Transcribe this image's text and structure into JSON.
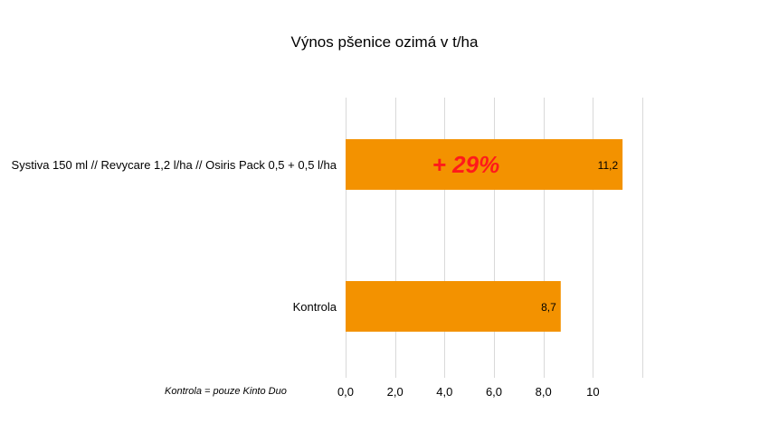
{
  "chart_data": {
    "type": "bar",
    "orientation": "horizontal",
    "title": "Výnos pšenice ozimá v t/ha",
    "categories": [
      "Systiva 150 ml // Revycare 1,2 l/ha // Osiris Pack 0,5 + 0,5 l/ha",
      "Kontrola"
    ],
    "values": [
      11.2,
      8.7
    ],
    "data_labels": [
      "11,2",
      "8,7"
    ],
    "xlim": [
      0,
      12
    ],
    "x_ticks": [
      0,
      2,
      4,
      6,
      8,
      10
    ],
    "x_tick_labels": [
      "0,0",
      "2,0",
      "4,0",
      "6,0",
      "8,0",
      "10"
    ],
    "grid": true,
    "bar_color": "#f39200",
    "annotation": {
      "text": "+ 29%",
      "category_index": 0,
      "color": "#ff1a1a"
    },
    "footnote": "Kontrola = pouze Kinto Duo"
  }
}
